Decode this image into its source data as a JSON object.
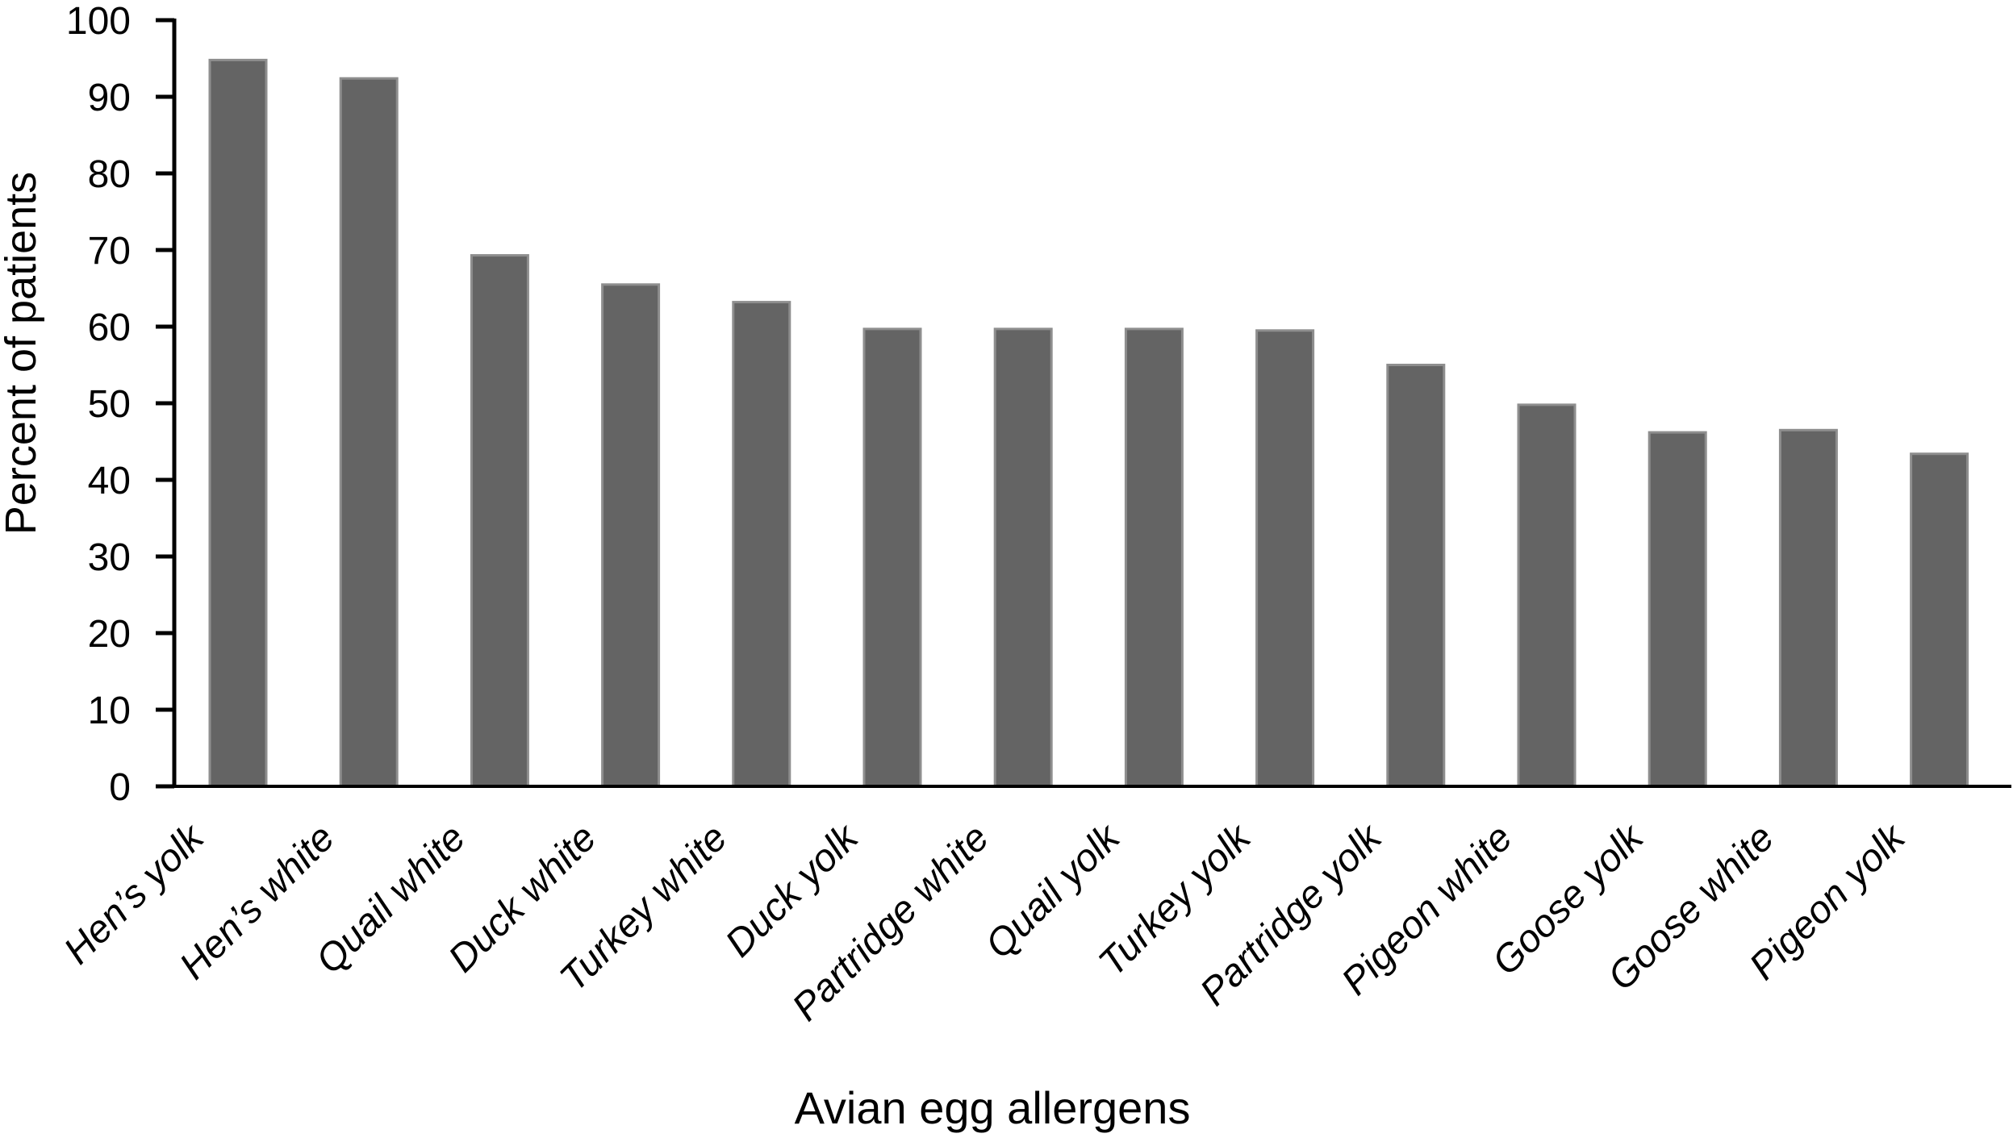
{
  "figure": {
    "background": "#ffffff"
  },
  "chart_data": {
    "type": "bar",
    "title": "",
    "xlabel": "Avian egg allergens",
    "ylabel": "Percent of patients",
    "categories": [
      "Hen’s yolk",
      "Hen’s white",
      "Quail white",
      "Duck white",
      "Turkey white",
      "Duck yolk",
      "Partridge white",
      "Quail yolk",
      "Turkey yolk",
      "Partridge yolk",
      "Pigeon white",
      "Goose yolk",
      "Goose white",
      "Pigeon yolk"
    ],
    "values": [
      94.8,
      92.4,
      69.3,
      65.5,
      63.2,
      59.7,
      59.7,
      59.7,
      59.5,
      55.0,
      49.8,
      46.2,
      46.5,
      43.4
    ],
    "ylim": [
      0,
      100
    ],
    "ytick_step": 10,
    "ytick_labels": [
      "0",
      "10",
      "20",
      "30",
      "40",
      "50",
      "60",
      "70",
      "80",
      "90",
      "100"
    ],
    "grid": false,
    "legend": null,
    "bar_fill": "#646464",
    "bar_stroke": "#8e8e8e",
    "axis_color": "#000000",
    "category_label_style": "italic",
    "category_label_rotation_deg": 45
  }
}
